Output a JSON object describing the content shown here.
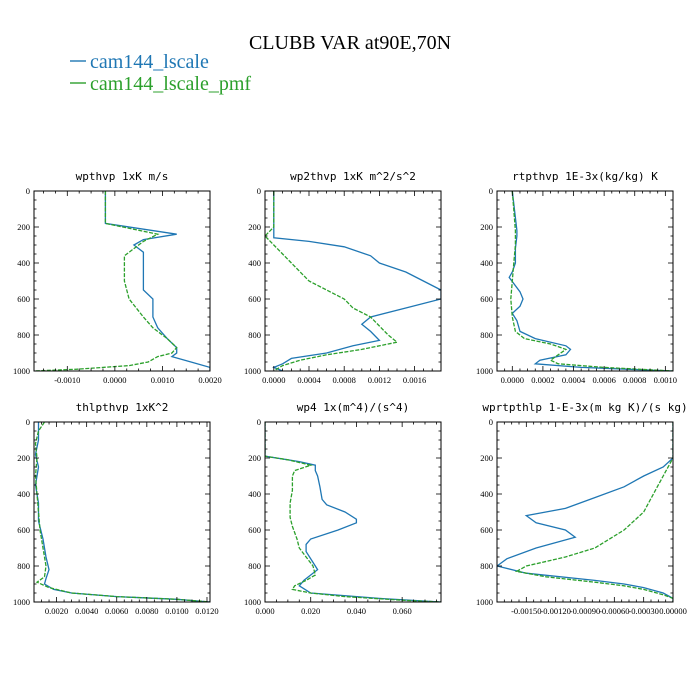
{
  "figure": {
    "title": "CLUBB VAR at90E,70N",
    "legend": [
      {
        "label": "cam144_lscale",
        "color": "#1f77b4",
        "dash": "solid"
      },
      {
        "label": "cam144_lscale_pmf",
        "color": "#2ca02c",
        "dash": "dashed"
      }
    ]
  },
  "chart_data": [
    {
      "type": "line",
      "title": "wpthvp  1xK m/s",
      "xlim": [
        -0.0017,
        0.002
      ],
      "ylim": [
        0,
        1000
      ],
      "y_inverted": true,
      "xticks": [
        -0.001,
        0.0,
        0.001,
        0.002
      ],
      "xtick_labels": [
        "-0.0010",
        "0.0000",
        "0.0010",
        "0.0020"
      ],
      "yticks": [
        0,
        200,
        400,
        600,
        800,
        1000
      ],
      "ytick_labels": [
        "0",
        "200",
        "400",
        "600",
        "800",
        "1000"
      ],
      "series": [
        {
          "name": "cam144_lscale",
          "y": [
            0,
            150,
            180,
            240,
            270,
            300,
            340,
            420,
            500,
            550,
            600,
            650,
            700,
            760,
            820,
            870,
            900,
            920,
            950,
            980,
            1000
          ],
          "x": [
            -0.0002,
            -0.0002,
            -0.0002,
            0.0013,
            0.0006,
            0.0004,
            0.0006,
            0.0006,
            0.0006,
            0.0006,
            0.0008,
            0.0008,
            0.0008,
            0.0009,
            0.0011,
            0.0013,
            0.0013,
            0.0012,
            0.0016,
            0.002,
            0.002
          ]
        },
        {
          "name": "cam144_lscale_pmf",
          "y": [
            0,
            150,
            180,
            240,
            280,
            320,
            360,
            400,
            500,
            600,
            700,
            760,
            820,
            870,
            900,
            920,
            950,
            970,
            990,
            1000
          ],
          "x": [
            -0.0002,
            -0.0002,
            -0.0002,
            0.0009,
            0.0006,
            0.0004,
            0.0002,
            0.0002,
            0.0002,
            0.0003,
            0.0006,
            0.0008,
            0.0011,
            0.0013,
            0.0012,
            0.0009,
            0.0007,
            0.0003,
            -0.0008,
            -0.0017
          ]
        }
      ]
    },
    {
      "type": "line",
      "title": "wp2thvp  1xK m^2/s^2",
      "xlim": [
        -0.0001,
        0.0019
      ],
      "ylim": [
        0,
        1000
      ],
      "y_inverted": true,
      "xticks": [
        0.0,
        0.0004,
        0.0008,
        0.0012,
        0.0016
      ],
      "xtick_labels": [
        "0.0000",
        "0.0004",
        "0.0008",
        "0.0012",
        "0.0016"
      ],
      "yticks": [
        0,
        200,
        400,
        600,
        800,
        1000
      ],
      "ytick_labels": [
        "0",
        "200",
        "400",
        "600",
        "800",
        "1000"
      ],
      "series": [
        {
          "name": "cam144_lscale",
          "y": [
            0,
            200,
            260,
            280,
            310,
            360,
            400,
            450,
            500,
            550,
            600,
            650,
            700,
            740,
            780,
            830,
            860,
            900,
            930,
            960,
            980,
            1000
          ],
          "x": [
            0.0,
            0.0,
            0.0,
            0.0004,
            0.0008,
            0.0011,
            0.0012,
            0.0015,
            0.0017,
            0.0019,
            0.0019,
            0.0015,
            0.0011,
            0.001,
            0.0011,
            0.0012,
            0.0009,
            0.0006,
            0.0002,
            0.0001,
            0.0,
            0.0001
          ]
        },
        {
          "name": "cam144_lscale_pmf",
          "y": [
            0,
            200,
            250,
            300,
            350,
            400,
            450,
            500,
            550,
            600,
            650,
            700,
            750,
            800,
            840,
            880,
            910,
            940,
            970,
            1000
          ],
          "x": [
            0.0,
            0.0,
            -0.0001,
            0.0,
            0.0001,
            0.0002,
            0.0003,
            0.0004,
            0.0006,
            0.0008,
            0.0009,
            0.0011,
            0.0012,
            0.0013,
            0.0014,
            0.001,
            0.0006,
            0.0003,
            0.0001,
            0.0
          ]
        }
      ]
    },
    {
      "type": "line",
      "title": "rtpthvp  1E-3x(kg/kg) K",
      "xlim": [
        -0.0001,
        0.00105
      ],
      "ylim": [
        0,
        1000
      ],
      "y_inverted": true,
      "xticks": [
        0.0,
        0.0002,
        0.0004,
        0.0006,
        0.0008,
        0.001
      ],
      "xtick_labels": [
        "0.0000",
        "0.0002",
        "0.0004",
        "0.0006",
        "0.0008",
        "0.0010"
      ],
      "yticks": [
        0,
        200,
        400,
        600,
        800,
        1000
      ],
      "ytick_labels": [
        "0",
        "200",
        "400",
        "600",
        "800",
        "1000"
      ],
      "series": [
        {
          "name": "cam144_lscale",
          "y": [
            0,
            220,
            250,
            320,
            400,
            450,
            480,
            560,
            600,
            640,
            680,
            720,
            780,
            820,
            860,
            880,
            910,
            940,
            960,
            980,
            1000
          ],
          "x": [
            0.0,
            3e-05,
            3e-05,
            2e-05,
            2e-05,
            0.0,
            -2e-05,
            5e-05,
            7e-05,
            5e-05,
            0.0,
            3e-05,
            5e-05,
            0.00015,
            0.00035,
            0.00038,
            0.00035,
            0.00018,
            0.00015,
            0.00045,
            0.00105
          ]
        },
        {
          "name": "cam144_lscale_pmf",
          "y": [
            0,
            220,
            300,
            400,
            500,
            600,
            700,
            780,
            820,
            850,
            880,
            910,
            940,
            960,
            980,
            1000
          ],
          "x": [
            0.0,
            2e-05,
            2e-05,
            1e-05,
            0.0,
            -1e-05,
            0.0,
            2e-05,
            8e-05,
            0.00025,
            0.00035,
            0.0003,
            0.00025,
            0.0003,
            0.0006,
            0.00105
          ]
        }
      ]
    },
    {
      "type": "line",
      "title": "thlpthvp  1xK^2",
      "xlim": [
        0.0005,
        0.0122
      ],
      "ylim": [
        0,
        1000
      ],
      "y_inverted": true,
      "xticks": [
        0.002,
        0.004,
        0.006,
        0.008,
        0.01,
        0.012
      ],
      "xtick_labels": [
        "0.0020",
        "0.0040",
        "0.0060",
        "0.0080",
        "0.0100",
        "0.0120"
      ],
      "yticks": [
        0,
        200,
        400,
        600,
        800,
        1000
      ],
      "ytick_labels": [
        "0",
        "200",
        "400",
        "600",
        "800",
        "1000"
      ],
      "series": [
        {
          "name": "cam144_lscale",
          "y": [
            0,
            100,
            180,
            250,
            350,
            450,
            550,
            650,
            750,
            820,
            870,
            900,
            930,
            950,
            970,
            985,
            1000
          ],
          "x": [
            0.0008,
            0.0008,
            0.0006,
            0.0008,
            0.0006,
            0.0008,
            0.0008,
            0.0011,
            0.0013,
            0.0015,
            0.0013,
            0.0012,
            0.0018,
            0.003,
            0.006,
            0.01,
            0.0122
          ]
        },
        {
          "name": "cam144_lscale_pmf",
          "y": [
            0,
            50,
            120,
            200,
            300,
            400,
            500,
            600,
            700,
            800,
            860,
            890,
            920,
            950,
            970,
            985,
            1000
          ],
          "x": [
            0.0012,
            0.0008,
            0.0006,
            0.0007,
            0.0006,
            0.0007,
            0.0008,
            0.0009,
            0.0011,
            0.0013,
            0.0012,
            0.0007,
            0.0015,
            0.003,
            0.006,
            0.01,
            0.0122
          ]
        }
      ]
    },
    {
      "type": "line",
      "title": "wp4  1x(m^4)/(s^4)",
      "xlim": [
        0.0,
        0.077
      ],
      "ylim": [
        0,
        1000
      ],
      "y_inverted": true,
      "xticks": [
        0.0,
        0.02,
        0.04,
        0.06
      ],
      "xtick_labels": [
        "0.000",
        "0.020",
        "0.040",
        "0.060"
      ],
      "yticks": [
        0,
        200,
        400,
        600,
        800,
        1000
      ],
      "ytick_labels": [
        "0",
        "200",
        "400",
        "600",
        "800",
        "1000"
      ],
      "series": [
        {
          "name": "cam144_lscale",
          "y": [
            0,
            190,
            220,
            240,
            270,
            300,
            360,
            430,
            460,
            500,
            540,
            560,
            600,
            650,
            680,
            720,
            780,
            820,
            850,
            880,
            910,
            950,
            980,
            1000
          ],
          "x": [
            0.0,
            0.0,
            0.015,
            0.022,
            0.022,
            0.023,
            0.024,
            0.025,
            0.027,
            0.035,
            0.04,
            0.04,
            0.032,
            0.02,
            0.018,
            0.018,
            0.021,
            0.023,
            0.02,
            0.017,
            0.015,
            0.02,
            0.05,
            0.077
          ]
        },
        {
          "name": "cam144_lscale_pmf",
          "y": [
            0,
            190,
            210,
            240,
            270,
            300,
            380,
            450,
            530,
            580,
            650,
            700,
            750,
            800,
            850,
            880,
            910,
            930,
            950,
            970,
            990,
            1000
          ],
          "x": [
            0.0,
            0.0,
            0.01,
            0.02,
            0.013,
            0.012,
            0.012,
            0.011,
            0.011,
            0.012,
            0.014,
            0.015,
            0.018,
            0.021,
            0.022,
            0.018,
            0.013,
            0.012,
            0.02,
            0.035,
            0.06,
            0.077
          ]
        }
      ]
    },
    {
      "type": "line",
      "title": "wprtpthlp  1-E-3x(m kg K)/(s kg)",
      "xlim": [
        -0.0018,
        0.0
      ],
      "ylim": [
        0,
        1000
      ],
      "y_inverted": true,
      "xticks": [
        -0.0015,
        -0.0012,
        -0.0009,
        -0.0006,
        -0.0003,
        0.0
      ],
      "xtick_labels": [
        "-0.00150",
        "-0.00120",
        "-0.00090",
        "-0.00060",
        "-0.00030",
        "0.00000"
      ],
      "yticks": [
        0,
        200,
        400,
        600,
        800,
        1000
      ],
      "ytick_labels": [
        "0",
        "200",
        "400",
        "600",
        "800",
        "1000"
      ],
      "series": [
        {
          "name": "cam144_lscale",
          "y": [
            0,
            200,
            250,
            300,
            360,
            420,
            480,
            520,
            560,
            600,
            640,
            700,
            760,
            800,
            840,
            880,
            900,
            920,
            950,
            980,
            1000
          ],
          "x": [
            0.0,
            0.0,
            -0.0001,
            -0.0003,
            -0.0005,
            -0.0008,
            -0.0011,
            -0.0015,
            -0.0014,
            -0.0011,
            -0.001,
            -0.0014,
            -0.0017,
            -0.0018,
            -0.0015,
            -0.0008,
            -0.0005,
            -0.0003,
            -0.0001,
            0.0,
            0.0
          ]
        },
        {
          "name": "cam144_lscale_pmf",
          "y": [
            0,
            200,
            300,
            400,
            500,
            600,
            700,
            750,
            800,
            830,
            860,
            890,
            910,
            930,
            960,
            980,
            1000
          ],
          "x": [
            0.0,
            0.0,
            -0.0001,
            -0.0002,
            -0.0003,
            -0.0005,
            -0.0008,
            -0.0011,
            -0.0015,
            -0.0016,
            -0.0013,
            -0.0008,
            -0.0005,
            -0.0003,
            -0.0001,
            0.0,
            0.0
          ]
        }
      ]
    }
  ]
}
